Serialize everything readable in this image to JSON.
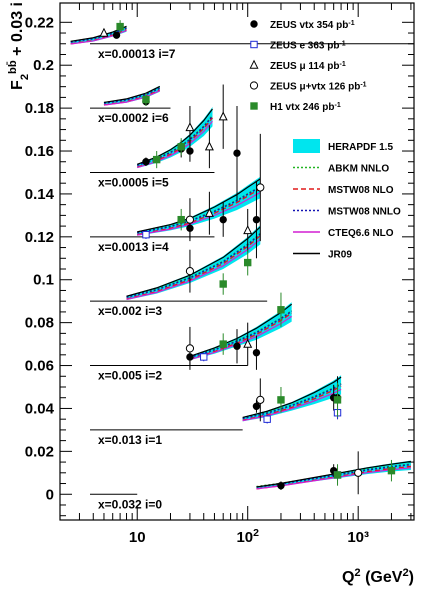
{
  "chart_data": {
    "type": "scatter",
    "xlabel": "Q²(GeV²)",
    "ylabel": "F₂^(bb̄) + 0.03 i",
    "xscale": "log",
    "xlim": [
      2,
      3200
    ],
    "ylim": [
      -0.012,
      0.229
    ],
    "yticks": [
      "0",
      "0.02",
      "0.04",
      "0.06",
      "0.08",
      "0.1",
      "0.12",
      "0.14",
      "0.16",
      "0.18",
      "0.2",
      "0.22"
    ],
    "xticks": [
      "10",
      "10²",
      "10³"
    ],
    "bins": [
      {
        "label": "x=0.00013 i=7",
        "offset": 0.21
      },
      {
        "label": "x=0.0002 i=6",
        "offset": 0.18
      },
      {
        "label": "x=0.0005 i=5",
        "offset": 0.15
      },
      {
        "label": "x=0.0013 i=4",
        "offset": 0.12
      },
      {
        "label": "x=0.002 i=3",
        "offset": 0.09
      },
      {
        "label": "x=0.005 i=2",
        "offset": 0.06
      },
      {
        "label": "x=0.013 i=1",
        "offset": 0.03
      },
      {
        "label": "x=0.032 i=0",
        "offset": 0.0
      }
    ],
    "series": [
      {
        "name": "ZEUS vtx 354 pb⁻¹",
        "marker": "filled-circle",
        "color": "#000000",
        "points": [
          [
            6.5,
            0.214,
            0.001
          ],
          [
            12,
            0.155,
            0.002
          ],
          [
            12,
            0.183,
            0.002
          ],
          [
            25,
            0.161,
            0.004
          ],
          [
            30,
            0.124,
            0.005
          ],
          [
            30,
            0.064,
            0.004
          ],
          [
            30,
            0.16,
            0.005
          ],
          [
            60,
            0.128,
            0.008
          ],
          [
            80,
            0.069,
            0.008
          ],
          [
            80,
            0.159,
            0.022
          ],
          [
            120,
            0.041,
            0.003
          ],
          [
            120,
            0.066,
            0.008
          ],
          [
            120,
            0.128,
            0.018
          ],
          [
            200,
            0.004,
            0.002
          ],
          [
            600,
            0.011,
            0.003
          ],
          [
            600,
            0.045,
            0.006
          ],
          [
            650,
            0.045,
            0.01
          ]
        ]
      },
      {
        "name": "ZEUS e 363 pb⁻¹",
        "marker": "open-square",
        "color": "#1f2bd6",
        "points": [
          [
            12,
            0.121,
            0.002
          ],
          [
            40,
            0.064,
            0.002
          ],
          [
            150,
            0.035,
            0.002
          ],
          [
            650,
            0.038,
            0.003
          ],
          [
            650,
            0.009,
            0.003
          ]
        ]
      },
      {
        "name": "ZEUS μ 114 pb⁻¹",
        "marker": "open-triangle",
        "color": "#000000",
        "points": [
          [
            5,
            0.215,
            0.002
          ],
          [
            30,
            0.171,
            0.01
          ],
          [
            45,
            0.131,
            0.01
          ],
          [
            45,
            0.162,
            0.01
          ],
          [
            60,
            0.176,
            0.015
          ],
          [
            100,
            0.123,
            0.01
          ],
          [
            100,
            0.07,
            0.01
          ]
        ]
      },
      {
        "name": "ZEUS μ+vtx 126 pb⁻¹",
        "marker": "open-circle",
        "color": "#000000",
        "points": [
          [
            30,
            0.128,
            0.01
          ],
          [
            30,
            0.068,
            0.01
          ],
          [
            30,
            0.104,
            0.01
          ],
          [
            130,
            0.044,
            0.01
          ],
          [
            130,
            0.143,
            0.025
          ],
          [
            1000,
            0.01,
            0.01
          ]
        ]
      },
      {
        "name": "H1 vtx 246 pb⁻¹",
        "marker": "filled-square",
        "color": "#2a8a2a",
        "points": [
          [
            7,
            0.218,
            0.003
          ],
          [
            12,
            0.184,
            0.003
          ],
          [
            15,
            0.156,
            0.004
          ],
          [
            25,
            0.162,
            0.004
          ],
          [
            25,
            0.128,
            0.005
          ],
          [
            60,
            0.07,
            0.005
          ],
          [
            60,
            0.098,
            0.005
          ],
          [
            100,
            0.108,
            0.006
          ],
          [
            200,
            0.086,
            0.008
          ],
          [
            200,
            0.044,
            0.006
          ],
          [
            650,
            0.044,
            0.008
          ],
          [
            650,
            0.009,
            0.005
          ],
          [
            2000,
            0.011,
            0.005
          ]
        ]
      }
    ],
    "theory": [
      {
        "name": "HERAPDF 1.5",
        "style": "band",
        "color": "#00e5ee"
      },
      {
        "name": "ABKM NNLO",
        "style": "dotted",
        "color": "#22b422"
      },
      {
        "name": "MSTW08 NLO",
        "style": "dashed",
        "color": "#e01a1a"
      },
      {
        "name": "MSTW08 NNLO",
        "style": "dotted",
        "color": "#1414b4"
      },
      {
        "name": "CTEQ6.6 NLO",
        "style": "solid",
        "color": "#d21ed2"
      },
      {
        "name": "JR09",
        "style": "solid",
        "color": "#000000"
      }
    ],
    "curves": [
      {
        "bin": 7,
        "x": [
          2.5,
          4,
          6,
          8
        ],
        "y": [
          0.2105,
          0.212,
          0.2145,
          0.217
        ],
        "w": [
          0.0008,
          0.001,
          0.0012,
          0.0014
        ]
      },
      {
        "bin": 6,
        "x": [
          5,
          8,
          12,
          16
        ],
        "y": [
          0.182,
          0.1835,
          0.186,
          0.189
        ],
        "w": [
          0.0008,
          0.001,
          0.0012,
          0.0014
        ]
      },
      {
        "bin": 5,
        "x": [
          10,
          15,
          20,
          25,
          30,
          40,
          48
        ],
        "y": [
          0.153,
          0.156,
          0.159,
          0.162,
          0.165,
          0.171,
          0.176
        ],
        "w": [
          0.001,
          0.0015,
          0.002,
          0.0025,
          0.003,
          0.004,
          0.0045
        ]
      },
      {
        "bin": 4,
        "x": [
          10,
          20,
          30,
          50,
          80,
          100,
          130
        ],
        "y": [
          0.1215,
          0.1245,
          0.127,
          0.1315,
          0.1365,
          0.1395,
          0.143
        ],
        "w": [
          0.001,
          0.0015,
          0.002,
          0.003,
          0.004,
          0.0045,
          0.005
        ]
      },
      {
        "bin": 3,
        "x": [
          8,
          15,
          30,
          60,
          100,
          130
        ],
        "y": [
          0.0915,
          0.095,
          0.1005,
          0.108,
          0.116,
          0.121
        ],
        "w": [
          0.001,
          0.0015,
          0.002,
          0.003,
          0.004,
          0.0045
        ]
      },
      {
        "bin": 2,
        "x": [
          30,
          50,
          80,
          120,
          200,
          250
        ],
        "y": [
          0.0635,
          0.067,
          0.071,
          0.075,
          0.0815,
          0.085
        ],
        "w": [
          0.001,
          0.0015,
          0.002,
          0.003,
          0.004,
          0.0045
        ]
      },
      {
        "bin": 1,
        "x": [
          90,
          150,
          250,
          400,
          600,
          700
        ],
        "y": [
          0.035,
          0.0375,
          0.041,
          0.045,
          0.049,
          0.051
        ],
        "w": [
          0.001,
          0.0015,
          0.002,
          0.003,
          0.004,
          0.0045
        ]
      },
      {
        "bin": 0,
        "x": [
          120,
          200,
          400,
          700,
          1200,
          2000,
          3000
        ],
        "y": [
          0.003,
          0.0045,
          0.007,
          0.009,
          0.011,
          0.0125,
          0.0135
        ],
        "w": [
          0.0005,
          0.0007,
          0.001,
          0.0013,
          0.0016,
          0.0019,
          0.0022
        ]
      }
    ],
    "grid": false,
    "legend_position": "top-right"
  }
}
